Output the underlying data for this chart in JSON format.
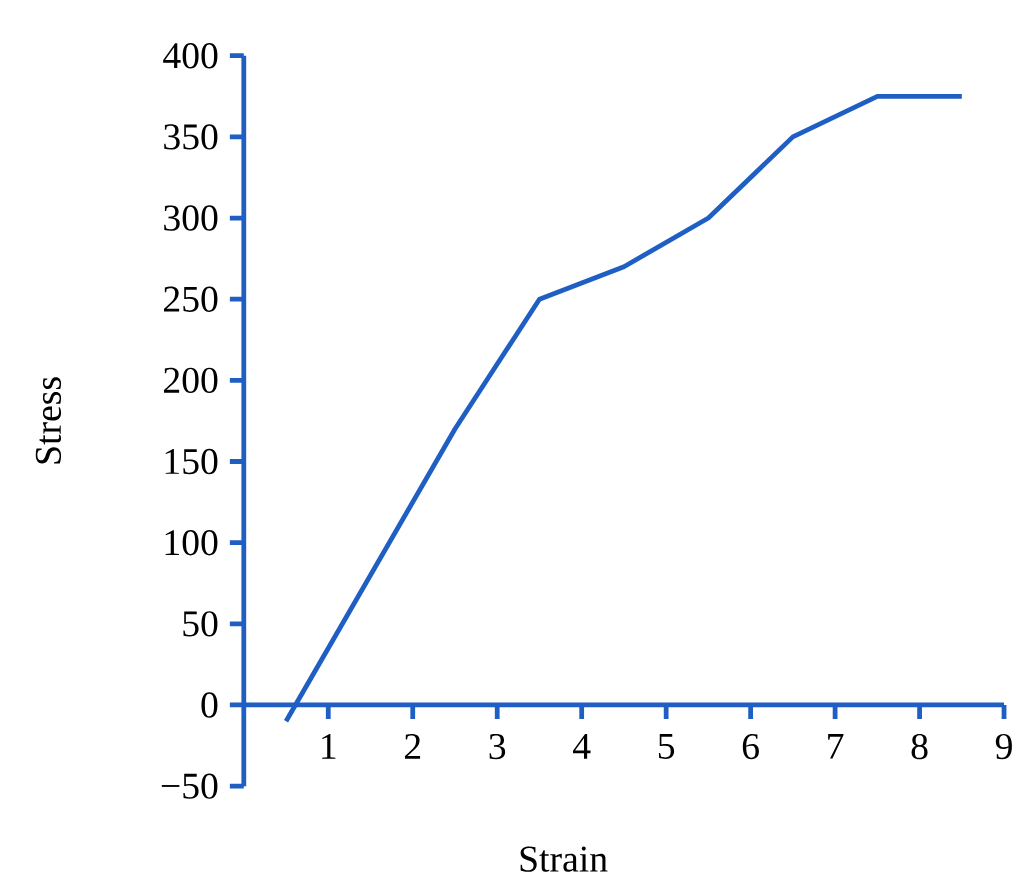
{
  "chart_data": {
    "type": "line",
    "xlabel": "Strain",
    "ylabel": "Stress",
    "x": [
      0.5,
      2.5,
      3.5,
      4.5,
      5.5,
      6.5,
      7.5,
      8.5
    ],
    "series": [
      {
        "color": "#1f5fc4",
        "values": [
          -10,
          170,
          250,
          270,
          300,
          350,
          375,
          375
        ]
      }
    ],
    "xlim": [
      0,
      9
    ],
    "ylim": [
      -50,
      400
    ],
    "xticks": [
      1,
      2,
      3,
      4,
      5,
      6,
      7,
      8,
      9
    ],
    "yticks": [
      {
        "value": -50,
        "label": "−50"
      },
      0,
      50,
      100,
      150,
      200,
      250,
      300,
      350,
      400
    ],
    "grid": false,
    "marker": "none",
    "line_style": "solid"
  }
}
